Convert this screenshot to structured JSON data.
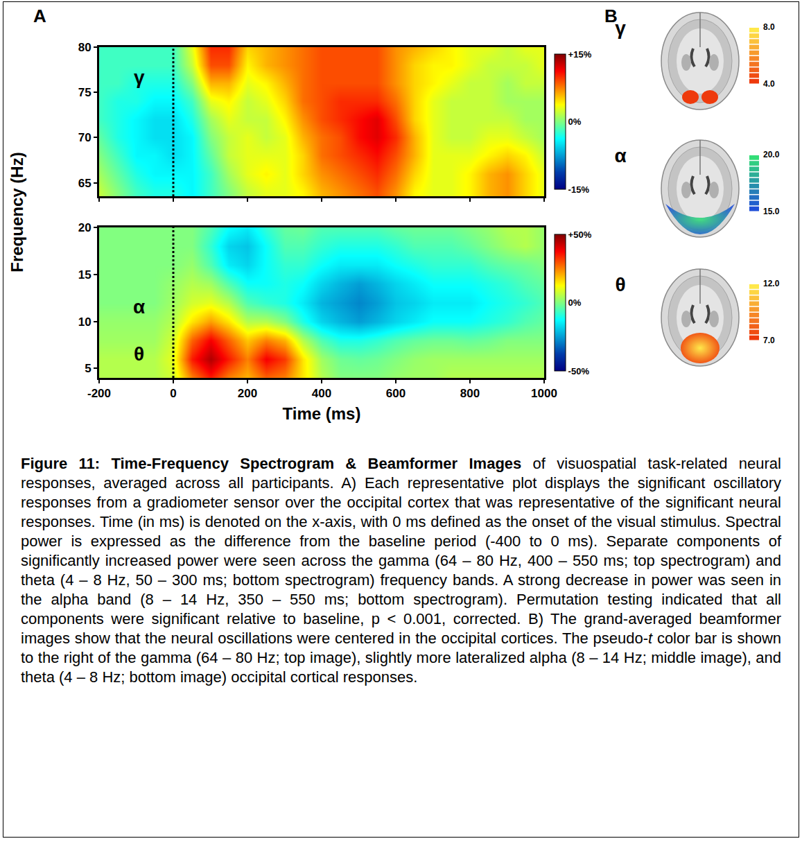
{
  "chart_data": [
    {
      "type": "heatmap",
      "x": [
        -200,
        -150,
        -100,
        -50,
        0,
        50,
        100,
        150,
        200,
        250,
        300,
        350,
        400,
        450,
        500,
        550,
        600,
        650,
        700,
        750,
        800,
        850,
        900,
        950,
        1000
      ],
      "y": [
        64,
        66,
        68,
        70,
        72,
        74,
        76,
        78,
        80
      ],
      "z": [
        [
          2,
          0,
          -2,
          -3,
          -3,
          -4,
          -2,
          0,
          2,
          3,
          3,
          4,
          6,
          7,
          8,
          9,
          7,
          4,
          3,
          3,
          4,
          6,
          7,
          5,
          3
        ],
        [
          1,
          -1,
          -3,
          -4,
          -4,
          -4,
          -2,
          1,
          3,
          4,
          3,
          5,
          7,
          8,
          9,
          10,
          8,
          5,
          3,
          3,
          4,
          6,
          7,
          5,
          3
        ],
        [
          0,
          -2,
          -4,
          -4,
          -5,
          -4,
          -1,
          2,
          3,
          3,
          3,
          5,
          8,
          9,
          10,
          11,
          9,
          6,
          3,
          3,
          3,
          4,
          5,
          4,
          2
        ],
        [
          -1,
          -3,
          -4,
          -5,
          -5,
          -4,
          0,
          2,
          3,
          2,
          3,
          6,
          8,
          9,
          11,
          12,
          10,
          6,
          3,
          2,
          2,
          3,
          3,
          2,
          1
        ],
        [
          -2,
          -3,
          -4,
          -5,
          -5,
          -3,
          1,
          3,
          2,
          2,
          4,
          7,
          9,
          10,
          11,
          12,
          9,
          5,
          3,
          2,
          2,
          2,
          2,
          1,
          1
        ],
        [
          -2,
          -3,
          -3,
          -4,
          -4,
          -2,
          3,
          4,
          2,
          3,
          5,
          8,
          9,
          10,
          10,
          10,
          8,
          5,
          3,
          2,
          2,
          2,
          1,
          1,
          1
        ],
        [
          -2,
          -2,
          -3,
          -3,
          -3,
          0,
          6,
          6,
          3,
          4,
          6,
          8,
          9,
          9,
          9,
          9,
          7,
          5,
          4,
          3,
          2,
          2,
          1,
          2,
          2
        ],
        [
          -2,
          -2,
          -2,
          -2,
          -2,
          2,
          9,
          9,
          4,
          6,
          7,
          8,
          9,
          9,
          9,
          9,
          7,
          5,
          4,
          4,
          3,
          2,
          2,
          2,
          3
        ],
        [
          -2,
          -2,
          -2,
          -2,
          -2,
          3,
          10,
          10,
          5,
          6,
          7,
          8,
          9,
          9,
          9,
          9,
          7,
          6,
          5,
          4,
          3,
          3,
          2,
          3,
          3
        ]
      ],
      "xlim": [
        -200,
        1000
      ],
      "xticks": [
        -200,
        0,
        200,
        400,
        600,
        800,
        1000
      ],
      "ylim": [
        63.5,
        80
      ],
      "yticks": [
        65,
        70,
        75,
        80
      ],
      "tick_labels": "y",
      "color": "Jet",
      "colorbar_range": [
        -15,
        15
      ],
      "colorbar_ticks": [
        {
          "value": 15,
          "label": "+15%"
        },
        {
          "value": 0,
          "label": "0%"
        },
        {
          "value": -15,
          "label": "-15%"
        }
      ],
      "annotations": [
        "γ"
      ],
      "stimulus_onset": 0
    },
    {
      "type": "heatmap",
      "x": [
        -200,
        -150,
        -100,
        -50,
        0,
        50,
        100,
        150,
        200,
        250,
        300,
        350,
        400,
        450,
        500,
        550,
        600,
        650,
        700,
        750,
        800,
        850,
        900,
        950,
        1000
      ],
      "y": [
        4,
        6,
        8,
        10,
        12,
        14,
        16,
        18,
        20
      ],
      "z": [
        [
          5,
          5,
          5,
          5,
          8,
          25,
          35,
          25,
          20,
          28,
          25,
          15,
          5,
          0,
          0,
          0,
          2,
          3,
          3,
          5,
          5,
          5,
          5,
          5,
          5
        ],
        [
          5,
          5,
          5,
          5,
          10,
          35,
          45,
          35,
          25,
          38,
          32,
          15,
          3,
          -2,
          -3,
          -2,
          0,
          2,
          3,
          3,
          3,
          3,
          3,
          3,
          3
        ],
        [
          3,
          3,
          3,
          3,
          8,
          28,
          38,
          28,
          18,
          25,
          20,
          5,
          -5,
          -10,
          -10,
          -8,
          -5,
          -3,
          -2,
          -2,
          -3,
          -2,
          0,
          0,
          0
        ],
        [
          2,
          2,
          2,
          2,
          5,
          15,
          22,
          15,
          5,
          5,
          0,
          -10,
          -18,
          -22,
          -25,
          -22,
          -18,
          -15,
          -12,
          -12,
          -12,
          -10,
          -8,
          -5,
          -3
        ],
        [
          0,
          0,
          0,
          0,
          3,
          8,
          10,
          5,
          -5,
          -8,
          -10,
          -15,
          -22,
          -25,
          -28,
          -25,
          -20,
          -18,
          -15,
          -15,
          -15,
          -12,
          -10,
          -8,
          -5
        ],
        [
          0,
          0,
          0,
          0,
          2,
          5,
          3,
          -5,
          -12,
          -12,
          -10,
          -12,
          -18,
          -22,
          -25,
          -22,
          -18,
          -15,
          -12,
          -12,
          -12,
          -10,
          -8,
          -5,
          -3
        ],
        [
          0,
          0,
          0,
          0,
          0,
          2,
          -5,
          -15,
          -18,
          -12,
          -8,
          -8,
          -12,
          -15,
          -15,
          -15,
          -12,
          -10,
          -8,
          -8,
          -8,
          -5,
          -3,
          -2,
          0
        ],
        [
          0,
          0,
          0,
          0,
          0,
          0,
          -8,
          -18,
          -20,
          -12,
          -5,
          -5,
          -8,
          -10,
          -10,
          -10,
          -8,
          -5,
          -5,
          -5,
          -3,
          0,
          3,
          5,
          2
        ],
        [
          0,
          0,
          0,
          0,
          0,
          0,
          -5,
          -12,
          -15,
          -8,
          -3,
          -2,
          -5,
          -5,
          -5,
          -5,
          -3,
          -2,
          -2,
          -2,
          0,
          2,
          5,
          5,
          2
        ]
      ],
      "xlim": [
        -200,
        1000
      ],
      "xticks": [
        -200,
        0,
        200,
        400,
        600,
        800,
        1000
      ],
      "ylim": [
        4,
        20
      ],
      "yticks": [
        5,
        10,
        15,
        20
      ],
      "x_label": "Time (ms)",
      "color": "Jet",
      "colorbar_range": [
        -50,
        50
      ],
      "colorbar_ticks": [
        {
          "value": 50,
          "label": "+50%"
        },
        {
          "value": 0,
          "label": "0%"
        },
        {
          "value": -50,
          "label": "-50%"
        }
      ],
      "annotations": [
        "α",
        "θ"
      ],
      "stimulus_onset": 0
    }
  ],
  "figure": {
    "panel_a": {
      "label": "A",
      "y_label": "Frequency (Hz)"
    },
    "panel_b": {
      "label": "B",
      "images": [
        {
          "symbol": "γ",
          "colorbar_range": [
            4,
            8
          ],
          "colorbar_ticks": [
            {
              "value": 8,
              "label": "8.0"
            },
            {
              "value": 4,
              "label": "4.0"
            }
          ],
          "colors": [
            "#ee3a0c",
            "#ffe84a"
          ]
        },
        {
          "symbol": "α",
          "colorbar_range": [
            15,
            20
          ],
          "colorbar_ticks": [
            {
              "value": 20,
              "label": "20.0"
            },
            {
              "value": 15,
              "label": "15.0"
            }
          ],
          "colors": [
            "#1f4fd8",
            "#33dd77"
          ]
        },
        {
          "symbol": "θ",
          "colorbar_range": [
            7,
            12
          ],
          "colorbar_ticks": [
            {
              "value": 12,
              "label": "12.0"
            },
            {
              "value": 7,
              "label": "7.0"
            }
          ],
          "colors": [
            "#ee3a0c",
            "#ffe84a"
          ]
        }
      ]
    },
    "caption": [
      {
        "text": "Figure 11: Time-Frequency Spectrogram & Beamformer Images",
        "style": "bold"
      },
      {
        "text": " of visuospatial task-related neural responses, averaged across all participants. A) Each representative plot displays the significant oscillatory responses from a gradiometer sensor over the occipital cortex that was representative of the significant neural responses. Time (in ms) is denoted on the x-axis, with 0 ms defined as the onset of the visual stimulus. Spectral power is expressed as the difference from the baseline period (-400 to 0 ms). Separate components of significantly increased power were seen across the gamma (64 – 80 Hz, 400 – 550 ms; top spectrogram) and theta (4 – 8 Hz, 50 – 300 ms; bottom spectrogram) frequency bands. A strong decrease in power was seen in the alpha band (8 – 14 Hz, 350 – 550 ms; bottom spectrogram). Permutation testing indicated that all components were significant relative to baseline, p < 0.001, corrected. B) The grand-averaged beamformer images show that the neural oscillations were centered in the occipital cortices. The pseudo-",
        "style": "normal"
      },
      {
        "text": "t",
        "style": "italic"
      },
      {
        "text": " color bar is shown to the right of the gamma (64 – 80 Hz; top image), slightly more lateralized alpha (8 – 14 Hz; middle image), and theta (4 – 8 Hz; bottom image) occipital cortical responses.",
        "style": "normal"
      }
    ]
  }
}
